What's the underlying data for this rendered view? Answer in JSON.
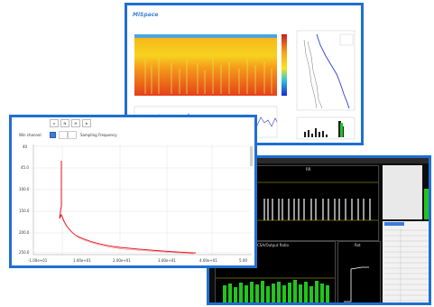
{
  "spectrogram_card": {
    "logo_text": "MiSpace",
    "title_lines": [
      "",
      ""
    ],
    "panel_titles": [
      "",
      "",
      ""
    ]
  },
  "frequency_card": {
    "tabs": [
      "x",
      "N",
      "H",
      "b"
    ],
    "checkbox_label": "Win channel",
    "sampling_label": "Sampling Frequency",
    "y_ticks": [
      "40",
      "45.0",
      "100.0",
      "150.0",
      "200.0",
      "250.0"
    ],
    "x_ticks": [
      "-1.00e+01",
      "1.00e+01",
      "2.00e+01",
      "3.00e+01",
      "4.00e+01",
      "5.00"
    ]
  },
  "dashboard_card": {
    "header_text": "",
    "panel_titles": [
      "RR",
      "CSA/Output Ratio",
      "Rot"
    ]
  },
  "colors": {
    "frame_border": "#1f6fd0",
    "curve": "#e8141c",
    "spectro_warm": "#e84a1a",
    "spectro_mid": "#f6d21e",
    "waveform": "#2b3ed8",
    "dash_bg": "#0c0c0c",
    "bar_green": "#22c41e"
  }
}
